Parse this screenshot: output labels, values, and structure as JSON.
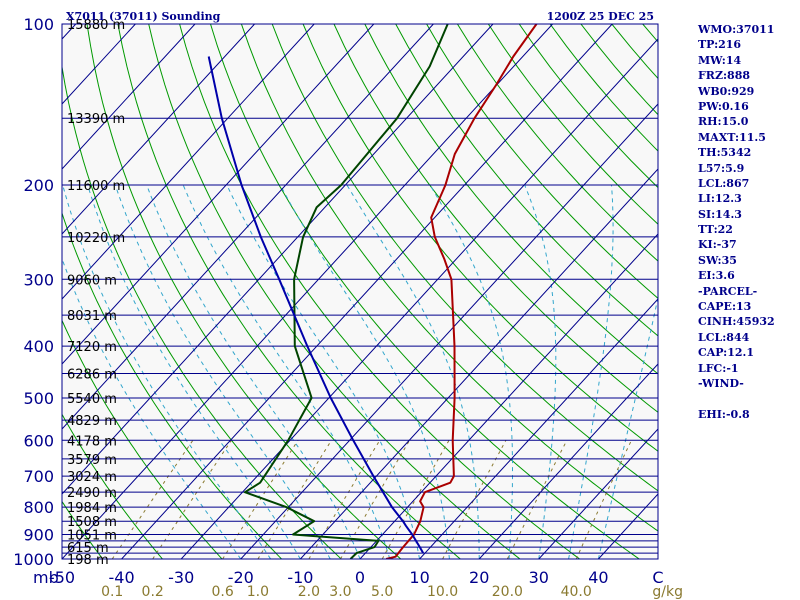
{
  "header": {
    "title": "X7011 (37011) Sounding",
    "time": "1200Z 25 DEC 25"
  },
  "indices": [
    "WMO:37011",
    "TP:216",
    "MW:14",
    "FRZ:888",
    "WB0:929",
    "PW:0.16",
    "RH:15.0",
    "MAXT:11.5",
    "TH:5342",
    "L57:5.9",
    "LCL:867",
    "LI:12.3",
    "SI:14.3",
    "TT:22",
    "KI:-37",
    "SW:35",
    "EI:3.6",
    "-PARCEL-",
    "CAPE:13",
    "CINH:45932",
    "LCL:844",
    "CAP:12.1",
    "LFC:-1",
    "-WIND-",
    "",
    "EHI:-0.8"
  ],
  "colors": {
    "isobar": "#00008b",
    "isotherm": "#00008b",
    "dry_adiabat": "#009900",
    "moist_adiabat": "#33a6cc",
    "mixing_ratio": "#8a7a30",
    "temperature": "#aa0000",
    "dewpoint": "#004400",
    "parcel": "#0000aa",
    "axis_text": "#00008b",
    "mr_text": "#8a7a30",
    "plot_bg": "#f8f8f8"
  },
  "chart_data": {
    "type": "line",
    "title": "X7011 (37011) Sounding",
    "subtitle": "1200Z 25 DEC 25",
    "xlabel": "C",
    "ylabel": "mb",
    "x_unit": "C",
    "y_unit": "mb",
    "xlim": [
      -50,
      50
    ],
    "ylim": [
      1000,
      100
    ],
    "x_ticks": [
      {
        "value": -50,
        "label": "-50"
      },
      {
        "value": -40,
        "label": "-40"
      },
      {
        "value": -30,
        "label": "-30"
      },
      {
        "value": -20,
        "label": "-20"
      },
      {
        "value": -10,
        "label": "-10"
      },
      {
        "value": 0,
        "label": "0"
      },
      {
        "value": 10,
        "label": "10"
      },
      {
        "value": 20,
        "label": "20"
      },
      {
        "value": 30,
        "label": "30"
      },
      {
        "value": 40,
        "label": "40"
      },
      {
        "value": 50,
        "label": "C"
      }
    ],
    "y_ticks": [
      {
        "value": 100,
        "label": "100"
      },
      {
        "value": 200,
        "label": "200"
      },
      {
        "value": 300,
        "label": "300"
      },
      {
        "value": 400,
        "label": "400"
      },
      {
        "value": 500,
        "label": "500"
      },
      {
        "value": 600,
        "label": "600"
      },
      {
        "value": 700,
        "label": "700"
      },
      {
        "value": 800,
        "label": "800"
      },
      {
        "value": 900,
        "label": "900"
      },
      {
        "value": 1000,
        "label": "1000"
      }
    ],
    "isobars": [
      100,
      150,
      200,
      250,
      300,
      350,
      400,
      450,
      500,
      550,
      600,
      650,
      700,
      750,
      800,
      850,
      900,
      925,
      950,
      975,
      1000
    ],
    "height_labels": [
      {
        "p": 100,
        "label": "15880 m"
      },
      {
        "p": 150,
        "label": "13390 m"
      },
      {
        "p": 200,
        "label": "11600 m"
      },
      {
        "p": 250,
        "label": "10220 m"
      },
      {
        "p": 300,
        "label": "9060 m"
      },
      {
        "p": 350,
        "label": "8031 m"
      },
      {
        "p": 400,
        "label": "7120 m"
      },
      {
        "p": 450,
        "label": "6286 m"
      },
      {
        "p": 500,
        "label": "5540 m"
      },
      {
        "p": 550,
        "label": "4829 m"
      },
      {
        "p": 600,
        "label": "4178 m"
      },
      {
        "p": 650,
        "label": "3579 m"
      },
      {
        "p": 700,
        "label": "3024 m"
      },
      {
        "p": 750,
        "label": "2490 m"
      },
      {
        "p": 800,
        "label": "1984 m"
      },
      {
        "p": 850,
        "label": "1508 m"
      },
      {
        "p": 900,
        "label": "1051 m"
      },
      {
        "p": 950,
        "label": "615 m"
      },
      {
        "p": 1000,
        "label": "198 m"
      }
    ],
    "mixing_ratio_labels": [
      {
        "w": 0.1,
        "label": "0.1"
      },
      {
        "w": 0.2,
        "label": "0.2"
      },
      {
        "w": 0.6,
        "label": "0.6"
      },
      {
        "w": 1.0,
        "label": "1.0"
      },
      {
        "w": 2.0,
        "label": "2.0"
      },
      {
        "w": 3.0,
        "label": "3.0"
      },
      {
        "w": 5.0,
        "label": "5.0"
      },
      {
        "w": 10.0,
        "label": "10.0"
      },
      {
        "w": 20.0,
        "label": "20.0"
      },
      {
        "w": 40.0,
        "label": "40.0"
      }
    ],
    "mixing_ratio_unit": "g/kg",
    "series": [
      {
        "name": "Temperature",
        "points": [
          [
            1000,
            4.4
          ],
          [
            990,
            5.6
          ],
          [
            950,
            5.4
          ],
          [
            900,
            5.3
          ],
          [
            850,
            4.3
          ],
          [
            800,
            2.7
          ],
          [
            780,
            1.2
          ],
          [
            750,
            0.6
          ],
          [
            720,
            3.4
          ],
          [
            700,
            3.0
          ],
          [
            600,
            -2.7
          ],
          [
            500,
            -8.9
          ],
          [
            400,
            -16.9
          ],
          [
            300,
            -27.7
          ],
          [
            275,
            -32.0
          ],
          [
            250,
            -37.0
          ],
          [
            230,
            -40.6
          ],
          [
            200,
            -43.2
          ],
          [
            175,
            -46.4
          ],
          [
            150,
            -48.6
          ],
          [
            130,
            -50.1
          ],
          [
            115,
            -51.6
          ],
          [
            100,
            -52.7
          ]
        ]
      },
      {
        "name": "Dewpoint",
        "points": [
          [
            1000,
            -1.6
          ],
          [
            975,
            -1.5
          ],
          [
            950,
            0.6
          ],
          [
            925,
            0.3
          ],
          [
            900,
            -15.0
          ],
          [
            850,
            -13.5
          ],
          [
            800,
            -20.3
          ],
          [
            750,
            -29.6
          ],
          [
            720,
            -28.5
          ],
          [
            600,
            -30.3
          ],
          [
            500,
            -32.9
          ],
          [
            400,
            -43.7
          ],
          [
            300,
            -54.1
          ],
          [
            250,
            -59.1
          ],
          [
            220,
            -61.4
          ],
          [
            200,
            -60.7
          ],
          [
            150,
            -61.6
          ],
          [
            120,
            -64.1
          ],
          [
            100,
            -67.6
          ]
        ]
      },
      {
        "name": "Parcel",
        "points": [
          [
            975,
            9.7
          ],
          [
            950,
            8.2
          ],
          [
            900,
            5.0
          ],
          [
            867,
            2.6
          ],
          [
            850,
            1.4
          ],
          [
            800,
            -2.6
          ],
          [
            700,
            -10.5
          ],
          [
            600,
            -19.4
          ],
          [
            500,
            -29.7
          ],
          [
            400,
            -41.6
          ],
          [
            300,
            -56.6
          ],
          [
            250,
            -66.2
          ],
          [
            200,
            -77.4
          ],
          [
            150,
            -91.0
          ],
          [
            115,
            -102.7
          ]
        ]
      }
    ]
  }
}
